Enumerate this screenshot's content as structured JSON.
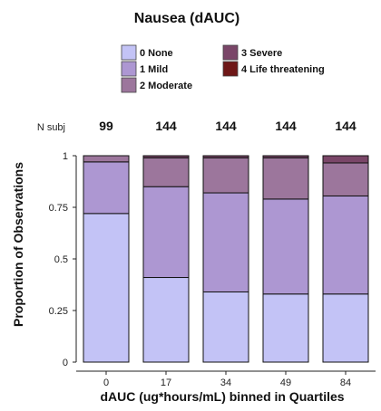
{
  "chart_data": {
    "type": "bar",
    "stacked": true,
    "title": "Nausea (dAUC)",
    "xlabel": "dAUC (ug*hours/mL) binned in Quartiles",
    "ylabel": "Proportion of Observations",
    "ylim": [
      0,
      1
    ],
    "yticks": [
      "0",
      "0.25",
      "0.5",
      "0.75",
      "1"
    ],
    "categories": [
      "0",
      "17",
      "34",
      "49",
      "84"
    ],
    "nsubj_label": "N subj",
    "nsubj": [
      "99",
      "144",
      "144",
      "144",
      "144"
    ],
    "series": [
      {
        "name": "0 None",
        "color": "#c3c3f6",
        "values": [
          0.72,
          0.41,
          0.34,
          0.33,
          0.33
        ]
      },
      {
        "name": "1 Mild",
        "color": "#ad97d2",
        "values": [
          0.25,
          0.44,
          0.48,
          0.46,
          0.475
        ]
      },
      {
        "name": "2 Moderate",
        "color": "#9c769c",
        "values": [
          0.03,
          0.14,
          0.17,
          0.2,
          0.16
        ]
      },
      {
        "name": "3 Severe",
        "color": "#7a4668",
        "values": [
          0,
          0.01,
          0.01,
          0.01,
          0.035
        ]
      },
      {
        "name": "4 Life threatening",
        "color": "#6e1717",
        "values": [
          0,
          0,
          0,
          0,
          0
        ]
      }
    ],
    "legend_position": "top",
    "grid": false
  }
}
